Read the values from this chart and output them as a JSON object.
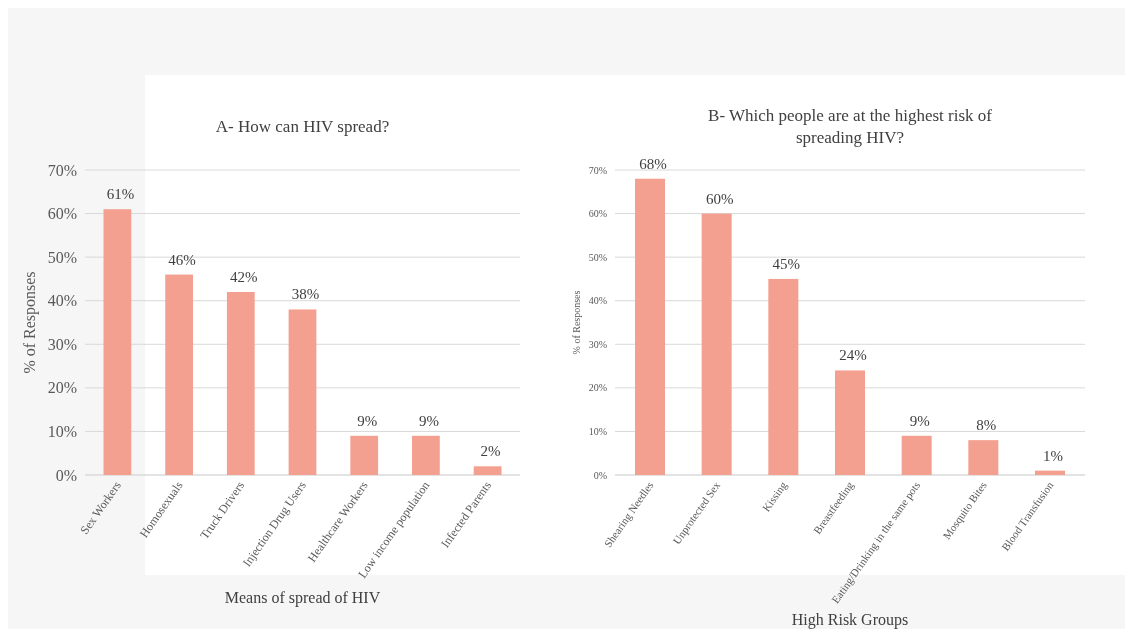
{
  "chart_data": [
    {
      "type": "bar",
      "title": "A- How can HIV spread?",
      "xlabel": "Means of spread of HIV",
      "ylabel": "% of Responses",
      "categories": [
        "Sex Workers",
        "Homosexuals",
        "Truck Drivers",
        "Injection Drug Users",
        "Healthcare Workers",
        "Low income population",
        "Infected Parents"
      ],
      "values": [
        61,
        46,
        42,
        38,
        9,
        9,
        2
      ],
      "value_labels": [
        "61%",
        "46%",
        "42%",
        "38%",
        "9%",
        "9%",
        "2%"
      ],
      "color": "#f4a090",
      "ylim": [
        0,
        70
      ],
      "yticks": [
        {
          "value": 0,
          "label": "0%"
        },
        {
          "value": 10,
          "label": "10%"
        },
        {
          "value": 20,
          "label": "20%"
        },
        {
          "value": 30,
          "label": "30%"
        },
        {
          "value": 40,
          "label": "40%"
        },
        {
          "value": 50,
          "label": "50%"
        },
        {
          "value": 60,
          "label": "60%"
        },
        {
          "value": 70,
          "label": "70%"
        }
      ],
      "grid": "y"
    },
    {
      "type": "bar",
      "title": "B- Which people are at the highest risk of spreading HIV?",
      "xlabel": "High Risk Groups",
      "ylabel": "% of Responses",
      "categories": [
        "Shearing Needles",
        "Unprotected Sex",
        "Kissing",
        "Breastfeeding",
        "Eating/Drinking in the same pots",
        "Mosquito Bites",
        "Blood Transfusion"
      ],
      "values": [
        68,
        60,
        45,
        24,
        9,
        8,
        1
      ],
      "value_labels": [
        "68%",
        "60%",
        "45%",
        "24%",
        "9%",
        "8%",
        "1%"
      ],
      "color": "#f4a090",
      "ylim": [
        0,
        70
      ],
      "yticks": [
        {
          "value": 0,
          "label": "0%"
        },
        {
          "value": 10,
          "label": "10%"
        },
        {
          "value": 20,
          "label": "20%"
        },
        {
          "value": 30,
          "label": "30%"
        },
        {
          "value": 40,
          "label": "40%"
        },
        {
          "value": 50,
          "label": "50%"
        },
        {
          "value": 60,
          "label": "60%"
        },
        {
          "value": 70,
          "label": "70%"
        }
      ],
      "grid": "y"
    }
  ]
}
